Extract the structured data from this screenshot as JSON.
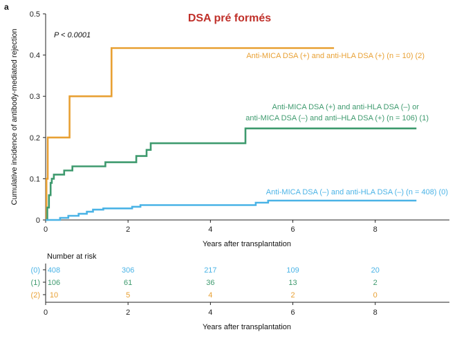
{
  "panel_letter": "a",
  "chart_data": {
    "type": "line",
    "step": true,
    "title": "DSA pré formés",
    "pvalue": "P < 0.0001",
    "xlabel": "Years after transplantation",
    "ylabel": "Cumulative incidence of antibody-mediated rejection",
    "xlim": [
      0,
      9.8
    ],
    "ylim": [
      0,
      0.5
    ],
    "xticks": [
      "0",
      "2",
      "4",
      "6",
      "8"
    ],
    "xtick_values": [
      0,
      2,
      4,
      6,
      8
    ],
    "yticks": [
      "0",
      "0.1",
      "0.2",
      "0.3",
      "0.4",
      "0.5"
    ],
    "ytick_values": [
      0,
      0.1,
      0.2,
      0.3,
      0.4,
      0.5
    ],
    "grid": false,
    "series": [
      {
        "label": "Anti-MICA DSA (+) and anti-HLA DSA (+) (n = 10) (2)",
        "color": "#E8A033",
        "points": [
          [
            0,
            0
          ],
          [
            0.02,
            0
          ],
          [
            0.02,
            0.1
          ],
          [
            0.05,
            0.1
          ],
          [
            0.05,
            0.2
          ],
          [
            0.58,
            0.2
          ],
          [
            0.58,
            0.3
          ],
          [
            1.6,
            0.3
          ],
          [
            1.6,
            0.417
          ],
          [
            7.0,
            0.417
          ]
        ]
      },
      {
        "label_lines": [
          "Anti-MICA DSA (+) and anti-HLA DSA (–) or",
          "anti-MICA DSA (–) and anti–HLA DSA (+) (n = 106) (1)"
        ],
        "color": "#3E9A6E",
        "points": [
          [
            0,
            0
          ],
          [
            0.04,
            0
          ],
          [
            0.04,
            0.03
          ],
          [
            0.08,
            0.03
          ],
          [
            0.08,
            0.06
          ],
          [
            0.12,
            0.06
          ],
          [
            0.12,
            0.09
          ],
          [
            0.15,
            0.09
          ],
          [
            0.15,
            0.1
          ],
          [
            0.2,
            0.1
          ],
          [
            0.2,
            0.11
          ],
          [
            0.45,
            0.11
          ],
          [
            0.45,
            0.12
          ],
          [
            0.65,
            0.12
          ],
          [
            0.65,
            0.13
          ],
          [
            1.45,
            0.13
          ],
          [
            1.45,
            0.14
          ],
          [
            2.2,
            0.14
          ],
          [
            2.2,
            0.155
          ],
          [
            2.45,
            0.155
          ],
          [
            2.45,
            0.17
          ],
          [
            2.55,
            0.17
          ],
          [
            2.55,
            0.186
          ],
          [
            4.85,
            0.186
          ],
          [
            4.85,
            0.222
          ],
          [
            9.0,
            0.222
          ]
        ]
      },
      {
        "label": "Anti-MICA DSA (–) and anti-HLA DSA (–) (n = 408) (0)",
        "color": "#4AB3E6",
        "points": [
          [
            0,
            0
          ],
          [
            0.35,
            0
          ],
          [
            0.35,
            0.005
          ],
          [
            0.55,
            0.005
          ],
          [
            0.55,
            0.01
          ],
          [
            0.8,
            0.01
          ],
          [
            0.8,
            0.015
          ],
          [
            1.0,
            0.015
          ],
          [
            1.0,
            0.02
          ],
          [
            1.15,
            0.02
          ],
          [
            1.15,
            0.025
          ],
          [
            1.4,
            0.025
          ],
          [
            1.4,
            0.028
          ],
          [
            2.1,
            0.028
          ],
          [
            2.1,
            0.032
          ],
          [
            2.3,
            0.032
          ],
          [
            2.3,
            0.036
          ],
          [
            5.1,
            0.036
          ],
          [
            5.1,
            0.042
          ],
          [
            5.4,
            0.042
          ],
          [
            5.4,
            0.047
          ],
          [
            9.0,
            0.047
          ]
        ]
      }
    ],
    "risk_table": {
      "title": "Number at risk",
      "xlabel": "Years after transplantation",
      "times": [
        0,
        2,
        4,
        6,
        8
      ],
      "xticks": [
        "0",
        "2",
        "4",
        "6",
        "8"
      ],
      "rows": [
        {
          "label": "(0)",
          "color": "#4AB3E6",
          "values": [
            "408",
            "306",
            "217",
            "109",
            "20"
          ]
        },
        {
          "label": "(1)",
          "color": "#3E9A6E",
          "values": [
            "106",
            "61",
            "36",
            "13",
            "2"
          ]
        },
        {
          "label": "(2)",
          "color": "#E8A033",
          "values": [
            "10",
            "5",
            "4",
            "2",
            "0"
          ]
        }
      ]
    }
  }
}
